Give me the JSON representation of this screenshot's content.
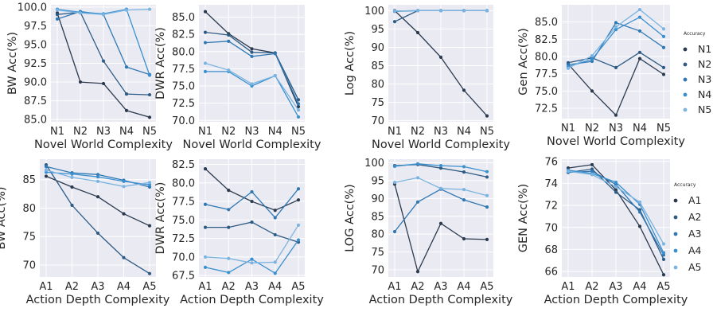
{
  "legends": [
    {
      "title": "Accuracy",
      "labels": [
        "N1",
        "N2",
        "N3",
        "N4",
        "N5"
      ]
    },
    {
      "title": "Accuracy",
      "labels": [
        "A1",
        "A2",
        "A3",
        "A4",
        "A5"
      ]
    }
  ],
  "series_colors": [
    "#2b3a4e",
    "#2d5b84",
    "#2f78b3",
    "#3a90cf",
    "#7bb4e0"
  ],
  "chart_data": [
    {
      "type": "line",
      "xlabel": "Novel World Complexity",
      "ylabel": "BW Acc(%)",
      "categories": [
        "N1",
        "N2",
        "N3",
        "N4",
        "N5"
      ],
      "ylim": [
        84.7,
        100.3
      ],
      "yticks": [
        85.0,
        87.5,
        90.0,
        92.5,
        95.0,
        97.5,
        100.0
      ],
      "yformat": 1,
      "series": [
        {
          "values": [
            99.2,
            90.0,
            89.8,
            86.2,
            85.3
          ]
        },
        {
          "values": [
            99.0,
            99.3,
            92.8,
            88.4,
            88.3
          ]
        },
        {
          "values": [
            98.4,
            99.4,
            99.0,
            92.0,
            91.0
          ]
        },
        {
          "values": [
            99.7,
            99.3,
            99.1,
            99.7,
            90.9
          ]
        },
        {
          "values": [
            99.6,
            99.2,
            99.0,
            99.6,
            99.7
          ]
        }
      ]
    },
    {
      "type": "line",
      "xlabel": "Novel World Complexity",
      "ylabel": "DWR Acc(%)",
      "categories": [
        "N1",
        "N2",
        "N3",
        "N4",
        "N5"
      ],
      "ylim": [
        69.8,
        86.8
      ],
      "yticks": [
        70.0,
        72.5,
        75.0,
        77.5,
        80.0,
        82.5,
        85.0
      ],
      "yformat": 1,
      "series": [
        {
          "values": [
            85.8,
            82.6,
            80.4,
            79.8,
            72.0
          ]
        },
        {
          "values": [
            82.8,
            82.4,
            79.9,
            79.8,
            73.0
          ]
        },
        {
          "values": [
            81.3,
            81.5,
            79.3,
            79.7,
            72.4
          ]
        },
        {
          "values": [
            77.1,
            77.1,
            75.0,
            76.5,
            70.5
          ]
        },
        {
          "values": [
            78.3,
            77.3,
            75.3,
            76.5,
            71.5
          ]
        }
      ]
    },
    {
      "type": "line",
      "xlabel": "Novel World Complexity",
      "ylabel": "Log Acc(%)",
      "categories": [
        "N1",
        "N2",
        "N3",
        "N4",
        "N5"
      ],
      "ylim": [
        69.7,
        101.6
      ],
      "yticks": [
        70,
        75,
        80,
        85,
        90,
        95,
        100
      ],
      "yformat": 0,
      "series": [
        {
          "values": [
            100.0,
            94.0,
            87.3,
            78.3,
            71.3
          ]
        },
        {
          "values": [
            97.0,
            100.0,
            100.0,
            100.0,
            100.0
          ]
        },
        {
          "values": [
            99.8,
            100.0,
            100.0,
            100.0,
            100.0
          ]
        },
        {
          "values": [
            99.9,
            100.0,
            100.0,
            100.0,
            100.0
          ]
        },
        {
          "values": [
            99.9,
            100.0,
            100.0,
            100.0,
            100.0
          ]
        }
      ]
    },
    {
      "type": "line",
      "xlabel": "Novel World Complexity",
      "ylabel": "Gen Acc(%)",
      "categories": [
        "N1",
        "N2",
        "N3",
        "N4",
        "N5"
      ],
      "ylim": [
        71.0,
        87.5
      ],
      "yticks": [
        72.5,
        75.0,
        77.5,
        80.0,
        82.5,
        85.0
      ],
      "yformat": 1,
      "series": [
        {
          "values": [
            78.9,
            75.0,
            71.5,
            79.7,
            77.4
          ]
        },
        {
          "values": [
            79.1,
            79.8,
            78.4,
            80.6,
            78.4
          ]
        },
        {
          "values": [
            78.8,
            79.3,
            84.9,
            83.7,
            81.3
          ]
        },
        {
          "values": [
            78.5,
            79.6,
            83.9,
            85.7,
            82.9
          ]
        },
        {
          "values": [
            78.3,
            80.1,
            84.3,
            86.8,
            84.0
          ]
        }
      ]
    },
    {
      "type": "line",
      "xlabel": "Action Depth Complexity",
      "ylabel": "BW Acc(%)",
      "categories": [
        "A1",
        "A2",
        "A3",
        "A4",
        "A5"
      ],
      "ylim": [
        67.9,
        88.6
      ],
      "yticks": [
        70,
        75,
        80,
        85
      ],
      "yformat": 0,
      "series": [
        {
          "values": [
            85.6,
            83.7,
            82.0,
            79.0,
            76.9
          ]
        },
        {
          "values": [
            87.6,
            80.5,
            75.6,
            71.3,
            68.5
          ]
        },
        {
          "values": [
            87.3,
            86.2,
            85.9,
            84.9,
            83.7
          ]
        },
        {
          "values": [
            86.3,
            86.0,
            85.5,
            84.7,
            84.1
          ]
        },
        {
          "values": [
            86.7,
            85.4,
            84.7,
            83.8,
            84.5
          ]
        }
      ]
    },
    {
      "type": "line",
      "xlabel": "Action Depth Complexity",
      "ylabel": "DWR Acc(%)",
      "categories": [
        "A1",
        "A2",
        "A3",
        "A4",
        "A5"
      ],
      "ylim": [
        67.3,
        83.2
      ],
      "yticks": [
        67.5,
        70.0,
        72.5,
        75.0,
        77.5,
        80.0,
        82.5
      ],
      "yformat": 1,
      "series": [
        {
          "values": [
            81.9,
            79.0,
            77.5,
            76.3,
            77.7
          ]
        },
        {
          "values": [
            74.0,
            74.0,
            74.7,
            73.0,
            72.0
          ]
        },
        {
          "values": [
            77.1,
            76.4,
            78.8,
            75.3,
            79.2
          ]
        },
        {
          "values": [
            68.6,
            67.9,
            69.7,
            67.8,
            72.3
          ]
        },
        {
          "values": [
            70.0,
            69.8,
            69.2,
            69.3,
            74.3
          ]
        }
      ]
    },
    {
      "type": "line",
      "xlabel": "Action Depth Complexity",
      "ylabel": "LOG Acc(%)",
      "categories": [
        "A1",
        "A2",
        "A3",
        "A4",
        "A5"
      ],
      "ylim": [
        68.0,
        101.0
      ],
      "yticks": [
        70,
        75,
        80,
        85,
        90,
        95,
        100
      ],
      "yformat": 0,
      "series": [
        {
          "values": [
            94.0,
            69.5,
            83.0,
            78.7,
            78.5
          ]
        },
        {
          "values": [
            99.2,
            99.5,
            98.5,
            97.4,
            96.0
          ]
        },
        {
          "values": [
            80.7,
            89.0,
            92.6,
            89.6,
            87.6
          ]
        },
        {
          "values": [
            99.0,
            99.7,
            99.2,
            98.9,
            97.5
          ]
        },
        {
          "values": [
            94.5,
            95.8,
            92.8,
            92.5,
            90.8
          ]
        }
      ]
    },
    {
      "type": "line",
      "xlabel": "Action Depth Complexity",
      "ylabel": "GEN Acc(%)",
      "categories": [
        "A1",
        "A2",
        "A3",
        "A4",
        "A5"
      ],
      "ylim": [
        65.5,
        76.2
      ],
      "yticks": [
        66,
        68,
        70,
        72,
        74,
        76
      ],
      "yformat": 0,
      "series": [
        {
          "values": [
            75.4,
            75.7,
            73.4,
            70.1,
            65.7
          ]
        },
        {
          "values": [
            75.0,
            75.3,
            73.2,
            71.6,
            67.1
          ]
        },
        {
          "values": [
            75.0,
            75.1,
            73.9,
            71.4,
            67.5
          ]
        },
        {
          "values": [
            75.2,
            74.9,
            74.1,
            72.1,
            67.7
          ]
        },
        {
          "values": [
            75.1,
            74.8,
            73.7,
            72.3,
            68.5
          ]
        }
      ]
    }
  ]
}
